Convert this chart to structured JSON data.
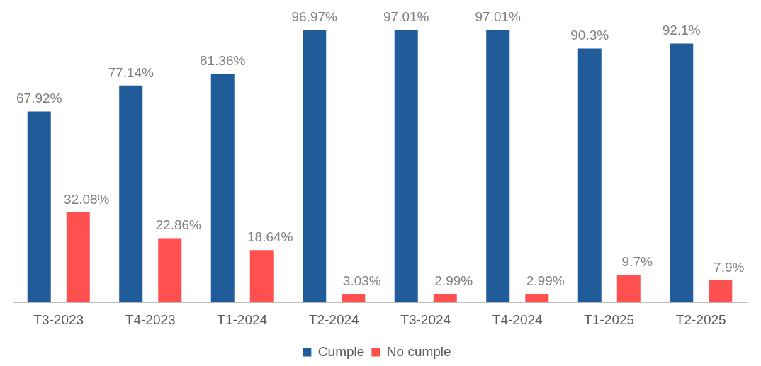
{
  "chart_data": {
    "type": "bar",
    "categories": [
      "T3-2023",
      "T4-2023",
      "T1-2024",
      "T2-2024",
      "T3-2024",
      "T4-2024",
      "T1-2025",
      "T2-2025"
    ],
    "series": [
      {
        "name": "Cumple",
        "color": "#1f5c99",
        "values": [
          67.92,
          77.14,
          81.36,
          96.97,
          97.01,
          97.01,
          90.3,
          92.1
        ],
        "value_labels": [
          "67.92%",
          "77.14%",
          "81.36%",
          "96.97%",
          "97.01%",
          "97.01%",
          "90.3%",
          "92.1%"
        ]
      },
      {
        "name": "No cumple",
        "color": "#ff5050",
        "values": [
          32.08,
          22.86,
          18.64,
          3.03,
          2.99,
          2.99,
          9.7,
          7.9
        ],
        "value_labels": [
          "32.08%",
          "22.86%",
          "18.64%",
          "3.03%",
          "2.99%",
          "2.99%",
          "9.7%",
          "7.9%"
        ]
      }
    ],
    "tick_labels": "x",
    "grid": false,
    "legend": "bottom"
  }
}
